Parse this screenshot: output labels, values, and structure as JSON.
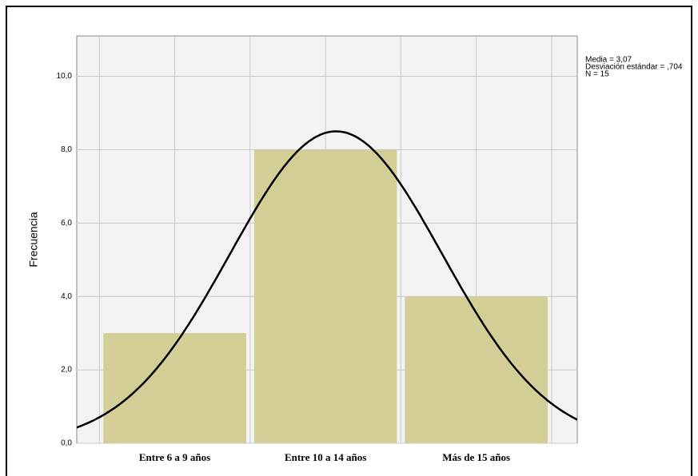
{
  "chart_data": {
    "type": "histogram",
    "y_label": "Frecuencia",
    "categories": [
      "Entre 6 a 9 años",
      "Entre 10 a 14 años",
      "Más de 15 años"
    ],
    "x": [
      2,
      3,
      4
    ],
    "bins": [
      1.5,
      2.5,
      3.5,
      4.5
    ],
    "values": [
      3,
      8,
      4
    ],
    "color": "#d3cd96",
    "xlim": [
      1.35,
      4.67
    ],
    "xticks": [
      1.5,
      2,
      2.5,
      3,
      3.5,
      4,
      4.5
    ],
    "ylim": [
      0,
      11.1
    ],
    "yticks": [
      {
        "value": 0,
        "label": "0,0"
      },
      {
        "value": 2,
        "label": "2,0"
      },
      {
        "value": 4,
        "label": "4,0"
      },
      {
        "value": 6,
        "label": "6,0"
      },
      {
        "value": 8,
        "label": "8,0"
      },
      {
        "value": 10,
        "label": "10,0"
      }
    ],
    "grid": true,
    "stats_text": [
      "Media = 3,07",
      "Desviación estándar = ,704",
      "N = 15"
    ],
    "normal_curve": {
      "mean": 3.07,
      "sd": 0.704,
      "n": 15
    }
  }
}
